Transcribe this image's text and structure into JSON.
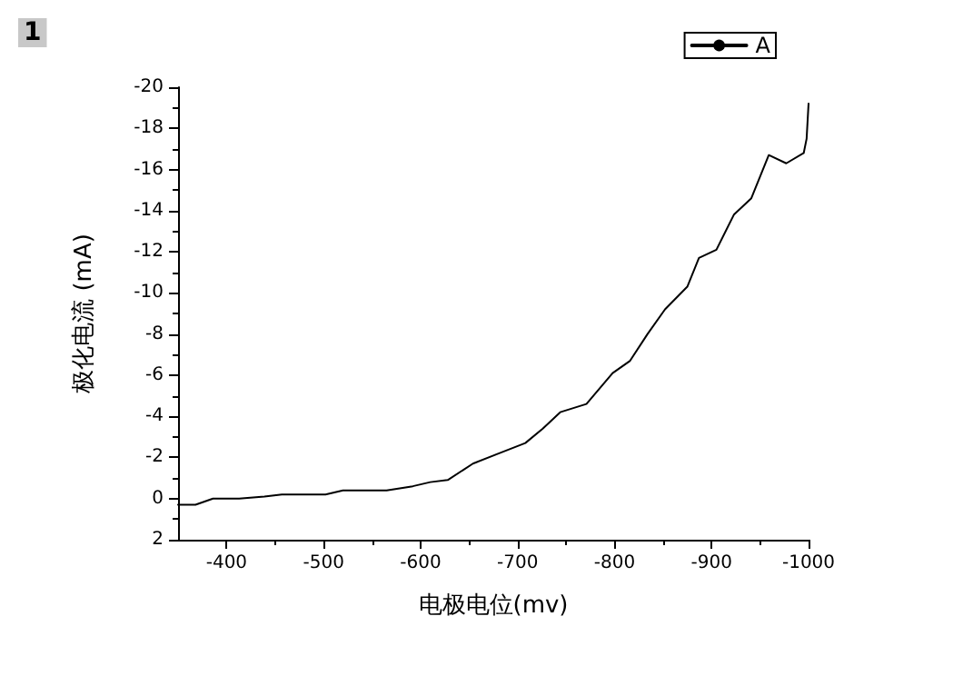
{
  "chart_data": {
    "type": "line",
    "xlabel": "电极电位(mv)",
    "ylabel": "极化电流 (mA)",
    "annotations": [
      "1"
    ],
    "x": [
      -350,
      -368,
      -386,
      -413,
      -439,
      -457,
      -484,
      -502,
      -520,
      -565,
      -592,
      -610,
      -628,
      -654,
      -681,
      -708,
      -726,
      -744,
      -771,
      -798,
      -816,
      -834,
      -852,
      -875,
      -887,
      -905,
      -923,
      -941,
      -959,
      -977,
      -995,
      -998,
      -1000
    ],
    "series": [
      {
        "name": "A",
        "color": "#000000",
        "values": [
          0.3,
          0.3,
          0,
          0,
          -0.1,
          -0.2,
          -0.2,
          -0.2,
          -0.4,
          -0.4,
          -0.6,
          -0.8,
          -0.9,
          -1.7,
          -2.2,
          -2.7,
          -3.4,
          -4.2,
          -4.6,
          -6.1,
          -6.7,
          -8.0,
          -9.2,
          -10.3,
          -11.7,
          -12.1,
          -13.8,
          -14.6,
          -16.7,
          -16.3,
          -16.8,
          -17.5,
          -19.2
        ]
      }
    ],
    "xlim": [
      -350,
      -1000
    ],
    "xticks": [
      -400,
      -500,
      -600,
      -700,
      -800,
      -900,
      -1000
    ],
    "ylim": [
      2,
      -20
    ],
    "yticks": [
      2,
      0,
      -2,
      -4,
      -6,
      -8,
      -10,
      -12,
      -14,
      -16,
      -18,
      -20
    ],
    "grid": false,
    "legend": "top right",
    "marker": "none",
    "line_style": "solid"
  }
}
